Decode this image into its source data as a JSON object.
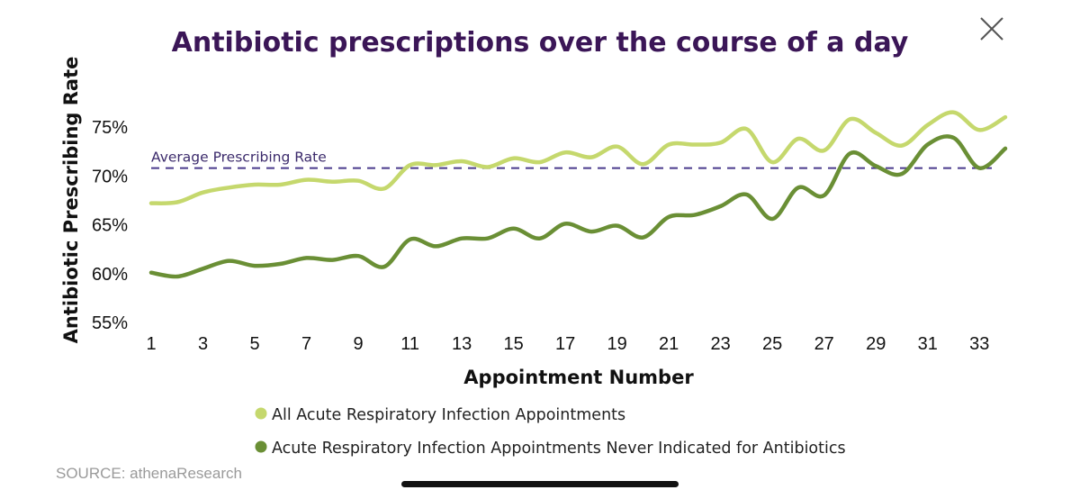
{
  "chart_data": {
    "type": "line",
    "title": "Antibiotic prescriptions over the course of a day",
    "xlabel": "Appointment Number",
    "ylabel": "Antibiotic Prescribing Rate",
    "x": [
      1,
      2,
      3,
      4,
      5,
      6,
      7,
      8,
      9,
      10,
      11,
      12,
      13,
      14,
      15,
      16,
      17,
      18,
      19,
      20,
      21,
      22,
      23,
      24,
      25,
      26,
      27,
      28,
      29,
      30,
      31,
      32,
      33,
      34
    ],
    "xticks": [
      "1",
      "3",
      "5",
      "7",
      "9",
      "11",
      "13",
      "15",
      "17",
      "19",
      "21",
      "23",
      "25",
      "27",
      "29",
      "31",
      "33"
    ],
    "xtick_values": [
      1,
      3,
      5,
      7,
      9,
      11,
      13,
      15,
      17,
      19,
      21,
      23,
      25,
      27,
      29,
      31,
      33
    ],
    "xlim": [
      1,
      34
    ],
    "yticks": [
      "55%",
      "60%",
      "65%",
      "70%",
      "75%"
    ],
    "ytick_values": [
      55,
      60,
      65,
      70,
      75
    ],
    "ylim": [
      55,
      75
    ],
    "grid": false,
    "series": [
      {
        "name": "All Acute Respiratory Infection Appointments",
        "color": "#c5d86d",
        "values": [
          67.2,
          67.3,
          68.3,
          68.8,
          69.1,
          69.1,
          69.6,
          69.4,
          69.5,
          68.7,
          71.1,
          71.1,
          71.5,
          70.9,
          71.8,
          71.4,
          72.4,
          71.9,
          73.0,
          71.2,
          73.2,
          73.2,
          73.4,
          74.8,
          71.4,
          73.8,
          72.6,
          75.8,
          74.4,
          73.1,
          75.2,
          76.5,
          74.7,
          76.0
        ]
      },
      {
        "name": "Acute Respiratory Infection Appointments Never Indicated for Antibiotics",
        "color": "#6a8f35",
        "values": [
          60.1,
          59.7,
          60.5,
          61.3,
          60.8,
          61.0,
          61.6,
          61.4,
          61.8,
          60.7,
          63.5,
          62.8,
          63.6,
          63.6,
          64.6,
          63.6,
          65.1,
          64.3,
          64.9,
          63.7,
          65.8,
          66.0,
          66.9,
          68.1,
          65.6,
          68.8,
          68.0,
          72.3,
          71.0,
          70.2,
          73.2,
          73.9,
          70.8,
          72.8
        ]
      }
    ],
    "reference_line": {
      "label": "Average Prescribing Rate",
      "value": 70.8,
      "color": "#4a3a8c"
    },
    "legend_position": "bottom-center"
  },
  "source_text": "SOURCE: athenaResearch",
  "close_label": "close"
}
